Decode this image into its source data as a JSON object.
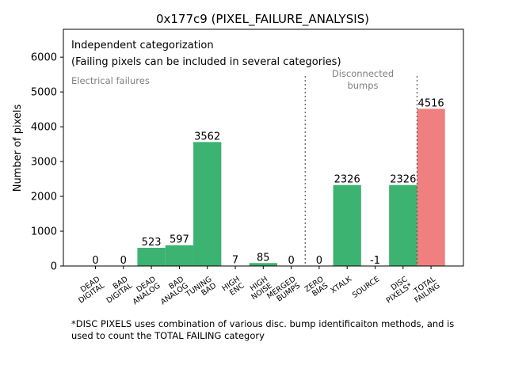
{
  "chart_data": {
    "type": "bar",
    "title": "0x177c9 (PIXEL_FAILURE_ANALYSIS)",
    "xlabel": "",
    "ylabel": "Number of pixels",
    "ylim": [
      0,
      6800
    ],
    "yticks": [
      0,
      1000,
      2000,
      3000,
      4000,
      5000,
      6000
    ],
    "ytick_labels": [
      "0",
      "1000",
      "2000",
      "3000",
      "4000",
      "5000",
      "6000"
    ],
    "grid": false,
    "categories": [
      [
        "DEAD",
        "DIGITAL"
      ],
      [
        "BAD",
        "DIGITAL"
      ],
      [
        "DEAD",
        "ANALOG"
      ],
      [
        "BAD",
        "ANALOG"
      ],
      [
        "TUNING",
        "BAD"
      ],
      [
        "HIGH",
        "ENC"
      ],
      [
        "HIGH",
        "NOISE"
      ],
      [
        "MERGED",
        "BUMPS"
      ],
      [
        "ZERO",
        "BIAS"
      ],
      [
        "XTALK"
      ],
      [
        "SOURCE"
      ],
      [
        "DISC",
        "PIXELS*"
      ],
      [
        "TOTAL",
        "FAILING"
      ]
    ],
    "values": [
      0,
      0,
      523,
      597,
      3562,
      7,
      85,
      0,
      0,
      2326,
      -1,
      2326,
      4516
    ],
    "value_labels": [
      "0",
      "0",
      "523",
      "597",
      "3562",
      "7",
      "85",
      "0",
      "0",
      "2326",
      "-1",
      "2326",
      "4516"
    ],
    "bar_colors": [
      "#3cb371",
      "#3cb371",
      "#3cb371",
      "#3cb371",
      "#3cb371",
      "#3cb371",
      "#3cb371",
      "#3cb371",
      "#3cb371",
      "#3cb371",
      "#3cb371",
      "#3cb371",
      "#f08080"
    ],
    "annotations": {
      "heading_line1": "Independent categorization",
      "heading_line2": "(Failing pixels can be included in several categories)",
      "electrical": "Electrical failures",
      "disconnected_line1": "Disconnected",
      "disconnected_line2": "bumps"
    },
    "separators_after_category": [
      7,
      11
    ],
    "footnote_line1": "*DISC PIXELS uses combination of various disc. bump identificaiton methods, and is",
    "footnote_line2": "used to count the TOTAL FAILING category"
  }
}
